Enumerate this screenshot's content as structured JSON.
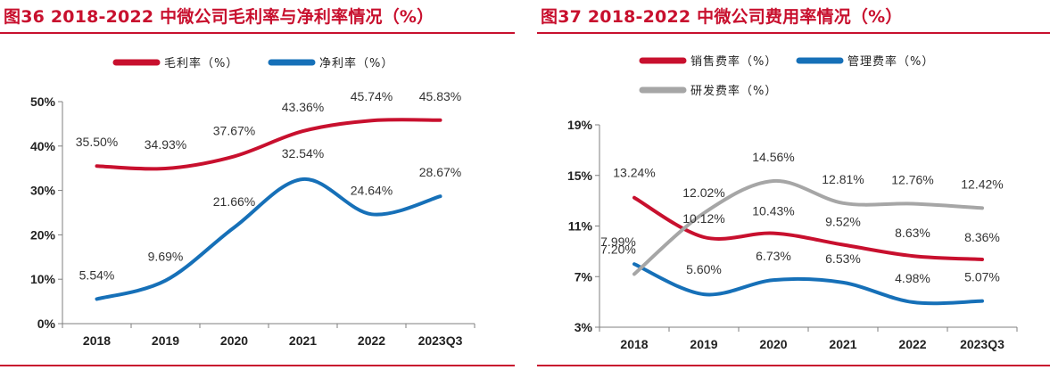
{
  "colors": {
    "red": "#c8102e",
    "blue": "#1670b8",
    "gray": "#a6a6a6",
    "axis": "#7f7f7f"
  },
  "left": {
    "title": "图36  2018-2022 中微公司毛利率与净利率情况（%）",
    "chart_data": {
      "type": "line",
      "title": "图36  2018-2022 中微公司毛利率与净利率情况（%）",
      "categories": [
        "2018",
        "2019",
        "2020",
        "2021",
        "2022",
        "2023Q3"
      ],
      "series": [
        {
          "name": "毛利率（%）",
          "color": "#c8102e",
          "values": [
            35.5,
            34.93,
            37.67,
            43.36,
            45.74,
            45.83
          ],
          "labels": [
            "35.50%",
            "34.93%",
            "37.67%",
            "43.36%",
            "45.74%",
            "45.83%"
          ]
        },
        {
          "name": "净利率（%）",
          "color": "#1670b8",
          "values": [
            5.54,
            9.69,
            21.66,
            32.54,
            24.64,
            28.67
          ],
          "labels": [
            "5.54%",
            "9.69%",
            "21.66%",
            "32.54%",
            "24.64%",
            "28.67%"
          ]
        }
      ],
      "yticks": [
        0,
        10,
        20,
        30,
        40,
        50
      ],
      "ytick_labels": [
        "0%",
        "10%",
        "20%",
        "30%",
        "40%",
        "50%"
      ],
      "ylim": [
        0,
        50
      ],
      "legend": "top"
    }
  },
  "right": {
    "title": "图37  2018-2022 中微公司费用率情况（%）",
    "chart_data": {
      "type": "line",
      "title": "图37  2018-2022 中微公司费用率情况（%）",
      "categories": [
        "2018",
        "2019",
        "2020",
        "2021",
        "2022",
        "2023Q3"
      ],
      "series": [
        {
          "name": "销售费率（%）",
          "color": "#c8102e",
          "values": [
            13.24,
            10.12,
            10.43,
            9.52,
            8.63,
            8.36
          ],
          "labels": [
            "13.24%",
            "10.12%",
            "10.43%",
            "9.52%",
            "8.63%",
            "8.36%"
          ]
        },
        {
          "name": "管理费率（%）",
          "color": "#1670b8",
          "values": [
            7.99,
            5.6,
            6.73,
            6.53,
            4.98,
            5.07
          ],
          "labels": [
            "7.99%",
            "5.60%",
            "6.73%",
            "6.53%",
            "4.98%",
            "5.07%"
          ]
        },
        {
          "name": "研发费率（%）",
          "color": "#a6a6a6",
          "values": [
            7.2,
            12.02,
            14.56,
            12.81,
            12.76,
            12.42
          ],
          "labels": [
            "7.20%",
            "12.02%",
            "14.56%",
            "12.81%",
            "12.76%",
            "12.42%"
          ]
        }
      ],
      "yticks": [
        3,
        7,
        11,
        15,
        19
      ],
      "ytick_labels": [
        "3%",
        "7%",
        "11%",
        "15%",
        "19%"
      ],
      "ylim": [
        3,
        19
      ],
      "legend": "top"
    }
  }
}
